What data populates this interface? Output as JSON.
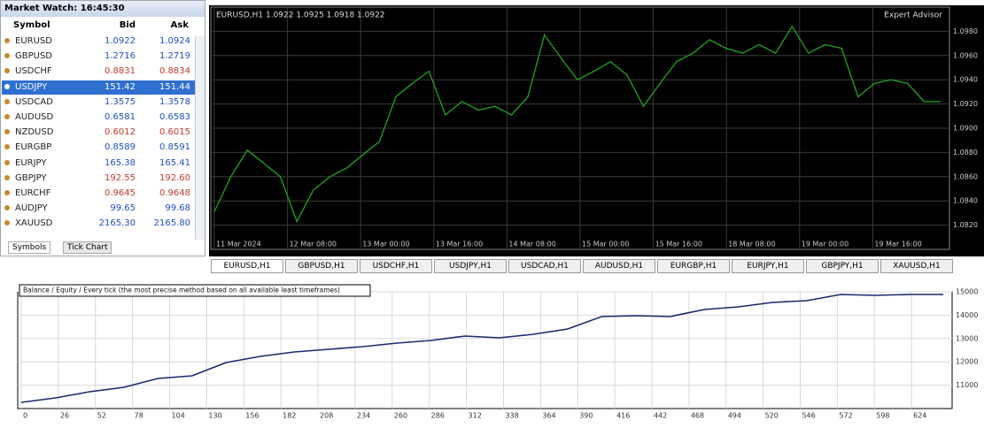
{
  "market_watch": {
    "title": "Market Watch: 16:45:30",
    "headers": [
      "Symbol",
      "Bid",
      "Ask"
    ],
    "rows": [
      [
        "EURUSD",
        "1.0922",
        "1.0924"
      ],
      [
        "GBPUSD",
        "1.2716",
        "1.2719"
      ],
      [
        "USDCHF",
        "0.8831",
        "0.8834"
      ],
      [
        "USDJPY",
        "151.42",
        "151.44"
      ],
      [
        "USDCAD",
        "1.3575",
        "1.3578"
      ],
      [
        "AUDUSD",
        "0.6581",
        "0.6583"
      ],
      [
        "NZDUSD",
        "0.6012",
        "0.6015"
      ],
      [
        "EURGBP",
        "0.8589",
        "0.8591"
      ],
      [
        "EURJPY",
        "165.38",
        "165.41"
      ],
      [
        "GBPJPY",
        "192.55",
        "192.60"
      ],
      [
        "EURCHF",
        "0.9645",
        "0.9648"
      ],
      [
        "AUDJPY",
        "99.65",
        "99.68"
      ],
      [
        "XAUUSD",
        "2165.30",
        "2165.80"
      ]
    ],
    "row_colors": [
      "#1c4fc4",
      "#1c4fc4",
      "#c0392b",
      "#1c4fc4",
      "#1c4fc4",
      "#1c4fc4",
      "#c0392b",
      "#1c4fc4",
      "#1c4fc4",
      "#c0392b",
      "#c0392b",
      "#1c4fc4",
      "#1c4fc4"
    ],
    "selected_row": 3,
    "tabs": [
      "Symbols",
      "Tick Chart"
    ]
  },
  "chart_tabs": [
    "EURUSD,H1",
    "GBPUSD,H1",
    "USDCHF,H1",
    "USDJPY,H1",
    "USDCAD,H1",
    "AUDUSD,H1",
    "EURGBP,H1",
    "EURJPY,H1",
    "GBPJPY,H1",
    "XAUUSD,H1"
  ],
  "chart_data": [
    {
      "type": "line",
      "title": "EURUSD,H1  1.0922 1.0925 1.0918 1.0922",
      "annotation": "Expert Advisor",
      "color": "#1f9a1f",
      "values": [
        1.0831,
        1.086,
        1.0882,
        1.0871,
        1.086,
        1.0823,
        1.0849,
        1.086,
        1.0867,
        1.0878,
        1.0889,
        1.0926,
        1.0937,
        1.0947,
        1.0911,
        1.0922,
        1.0915,
        1.0918,
        1.0911,
        1.0926,
        1.0977,
        1.0958,
        1.094,
        1.0947,
        1.0955,
        1.0944,
        1.0918,
        1.0937,
        1.0955,
        1.0962,
        1.0973,
        1.0966,
        1.0962,
        1.0969,
        1.0962,
        1.0984,
        1.0962,
        1.0969,
        1.0966,
        1.0926,
        1.0937,
        1.094,
        1.0937,
        1.0922,
        1.0922
      ],
      "ylim": [
        1.08,
        1.1
      ],
      "yticks": [
        {
          "value": 1.082,
          "label": "1.0820"
        },
        {
          "value": 1.084,
          "label": "1.0840"
        },
        {
          "value": 1.086,
          "label": "1.0860"
        },
        {
          "value": 1.088,
          "label": "1.0880"
        },
        {
          "value": 1.09,
          "label": "1.0900"
        },
        {
          "value": 1.092,
          "label": "1.0920"
        },
        {
          "value": 1.094,
          "label": "1.0940"
        },
        {
          "value": 1.096,
          "label": "1.0960"
        },
        {
          "value": 1.098,
          "label": "1.0980"
        }
      ],
      "x_tick_labels": [
        "11 Mar 2024",
        "12 Mar 08:00",
        "13 Mar 00:00",
        "13 Mar 16:00",
        "14 Mar 08:00",
        "15 Mar 00:00",
        "15 Mar 16:00",
        "18 Mar 08:00",
        "19 Mar 00:00",
        "19 Mar 16:00"
      ],
      "grid": true
    },
    {
      "type": "line",
      "title": "Balance / Equity / Every tick (the most precise method based on all available least timeframes)",
      "color": "#1a2a6c",
      "values": [
        10265,
        10455,
        10720,
        10909,
        11288,
        11402,
        11970,
        12235,
        12424,
        12538,
        12652,
        12803,
        12917,
        13106,
        13030,
        13182,
        13409,
        13939,
        13977,
        13939,
        14242,
        14356,
        14545,
        14621,
        14886,
        14848,
        14886,
        14886
      ],
      "ylim": [
        10000,
        15000
      ],
      "yticks": [
        11000,
        12000,
        13000,
        14000,
        15000
      ],
      "x_tick_labels": [
        "0",
        "26",
        "52",
        "78",
        "104",
        "130",
        "156",
        "182",
        "208",
        "234",
        "260",
        "286",
        "312",
        "338",
        "364",
        "390",
        "416",
        "442",
        "468",
        "494",
        "520",
        "546",
        "572",
        "598",
        "624"
      ],
      "grid": true
    }
  ]
}
